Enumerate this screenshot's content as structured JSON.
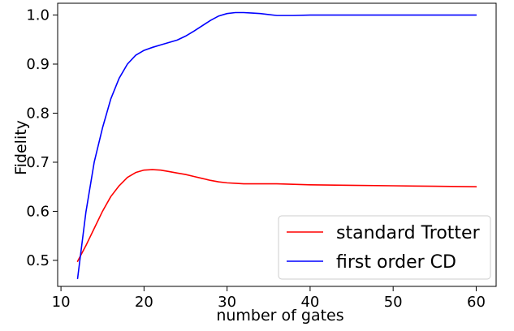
{
  "chart_data": {
    "type": "line",
    "title": "",
    "xlabel": "number of gates",
    "ylabel": "Fidelity",
    "xlim": [
      9.6,
      62.4
    ],
    "ylim": [
      0.447,
      1.024
    ],
    "x_ticks": [
      10,
      20,
      30,
      40,
      50,
      60
    ],
    "x_tick_labels": [
      "10",
      "20",
      "30",
      "40",
      "50",
      "60"
    ],
    "y_ticks": [
      0.5,
      0.6,
      0.7,
      0.8,
      0.9,
      1.0
    ],
    "y_tick_labels": [
      "0.5",
      "0.6",
      "0.7",
      "0.8",
      "0.9",
      "1.0"
    ],
    "grid": false,
    "legend_position": "lower-right",
    "series": [
      {
        "name": "standard Trotter",
        "color": "#ff0000",
        "x": [
          12,
          13,
          14,
          15,
          16,
          17,
          18,
          19,
          20,
          21,
          22,
          23,
          24,
          25,
          26,
          27,
          28,
          29,
          30,
          31,
          32,
          34,
          36,
          38,
          40,
          45,
          50,
          55,
          60
        ],
        "y": [
          0.498,
          0.53,
          0.565,
          0.6,
          0.63,
          0.652,
          0.669,
          0.679,
          0.684,
          0.685,
          0.684,
          0.681,
          0.678,
          0.675,
          0.671,
          0.667,
          0.663,
          0.66,
          0.658,
          0.657,
          0.656,
          0.656,
          0.656,
          0.655,
          0.654,
          0.653,
          0.652,
          0.651,
          0.65
        ]
      },
      {
        "name": "first order CD",
        "color": "#0000ff",
        "x": [
          12,
          13,
          14,
          15,
          16,
          17,
          18,
          19,
          20,
          21,
          22,
          23,
          24,
          25,
          26,
          27,
          28,
          29,
          30,
          31,
          32,
          33,
          34,
          35,
          36,
          38,
          40,
          45,
          50,
          55,
          60
        ],
        "y": [
          0.463,
          0.598,
          0.7,
          0.77,
          0.829,
          0.871,
          0.9,
          0.918,
          0.928,
          0.934,
          0.939,
          0.944,
          0.949,
          0.957,
          0.967,
          0.978,
          0.989,
          0.998,
          1.003,
          1.005,
          1.005,
          1.004,
          1.003,
          1.001,
          0.999,
          0.999,
          1.0,
          1.0,
          1.0,
          1.0,
          1.0
        ]
      }
    ]
  }
}
